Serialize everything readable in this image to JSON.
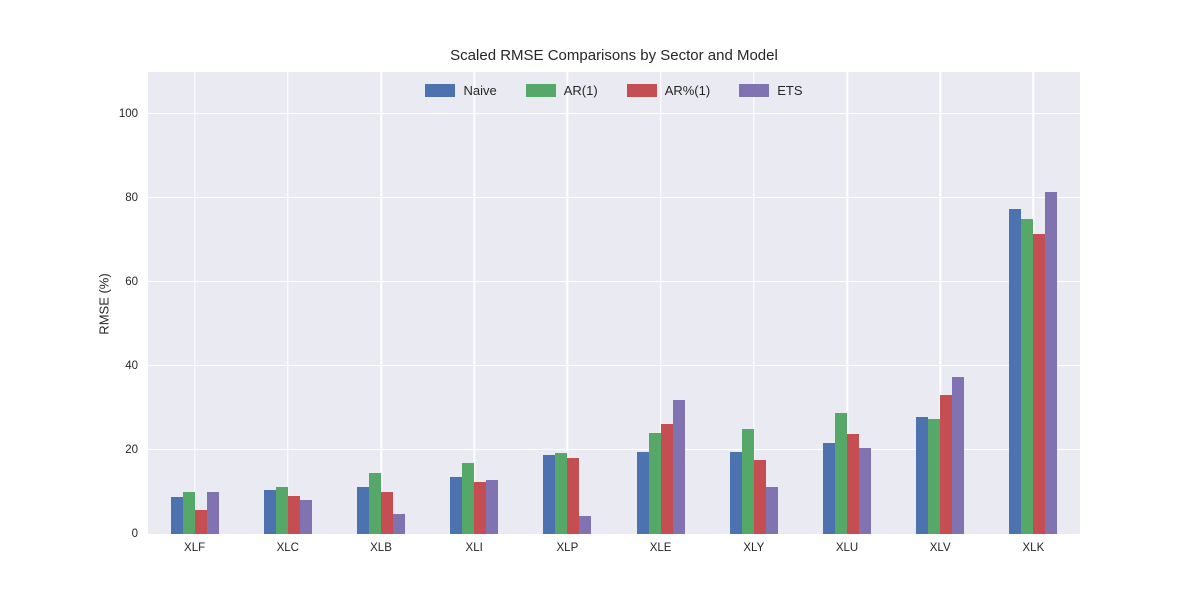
{
  "chart_data": {
    "type": "bar",
    "title": "Scaled RMSE Comparisons by Sector and Model",
    "xlabel": "",
    "ylabel": "RMSE (%)",
    "categories": [
      "XLF",
      "XLC",
      "XLB",
      "XLI",
      "XLP",
      "XLE",
      "XLY",
      "XLU",
      "XLV",
      "XLK"
    ],
    "series": [
      {
        "name": "Naive",
        "color": "#4C72B0",
        "values": [
          8.9,
          10.4,
          11.3,
          13.5,
          18.9,
          19.5,
          19.5,
          21.6,
          27.8,
          77.3
        ]
      },
      {
        "name": "AR(1)",
        "color": "#55A868",
        "values": [
          10.1,
          11.1,
          14.5,
          16.8,
          19.2,
          24.0,
          24.9,
          28.8,
          27.4,
          75.1
        ]
      },
      {
        "name": "AR%(1)",
        "color": "#C44E52",
        "values": [
          5.8,
          9.0,
          9.9,
          12.3,
          18.1,
          26.1,
          17.7,
          23.8,
          33.0,
          71.5
        ]
      },
      {
        "name": "ETS",
        "color": "#8172B2",
        "values": [
          9.9,
          8.0,
          4.8,
          12.8,
          4.4,
          31.8,
          11.1,
          20.5,
          37.4,
          81.4
        ]
      }
    ],
    "yticks": [
      0,
      20,
      40,
      60,
      80,
      100
    ],
    "ylim": [
      0,
      110
    ],
    "grid": true,
    "legend_position": "upper center",
    "plot_background": "#EAEAF2",
    "gridline_color": "#FFFFFF",
    "text_color": "#262626"
  }
}
